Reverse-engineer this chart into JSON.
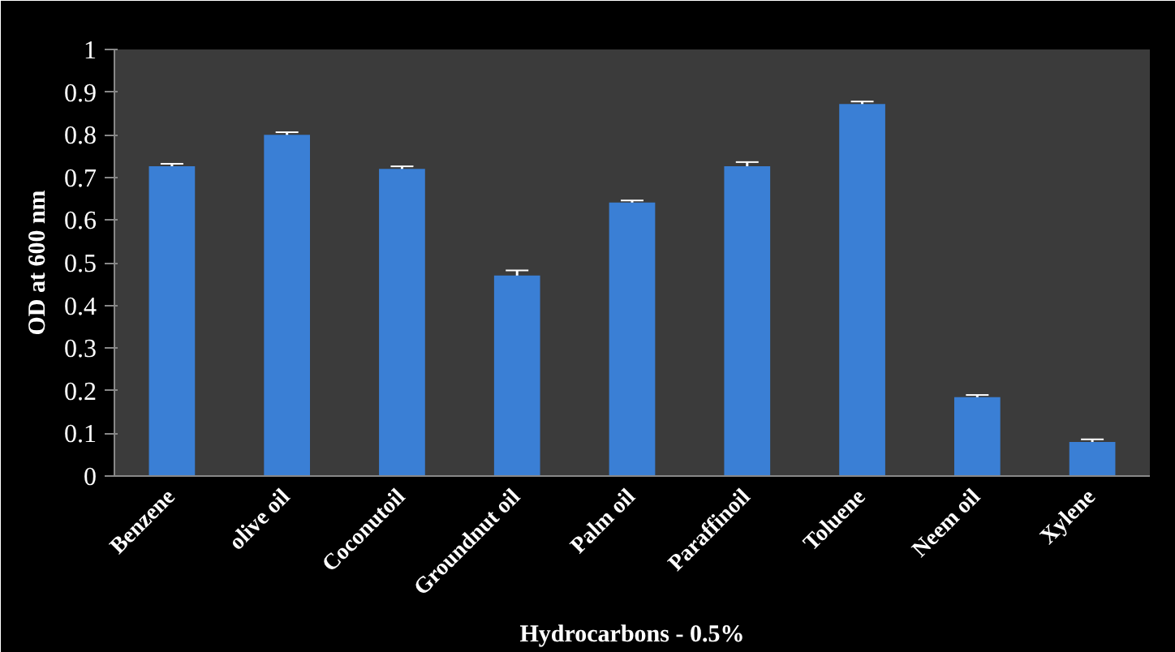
{
  "chart_data": {
    "type": "bar",
    "xlabel": "Hydrocarbons - 0.5%",
    "ylabel": "OD at 600 nm",
    "categories": [
      "Benzene",
      "olive oil",
      "Coconutoil",
      "Groundnut oil",
      "Palm oil",
      "Paraffinoil",
      "Toluene",
      "Neem oil",
      "Xylene"
    ],
    "values": [
      0.726,
      0.8,
      0.72,
      0.47,
      0.641,
      0.726,
      0.872,
      0.185,
      0.08
    ],
    "errors": [
      0.006,
      0.006,
      0.006,
      0.012,
      0.005,
      0.01,
      0.006,
      0.005,
      0.006
    ],
    "color": "#3a7fd5",
    "ylim": [
      0,
      1
    ],
    "yticks": [
      0,
      0.1,
      0.2,
      0.3,
      0.4,
      0.5,
      0.6,
      0.7,
      0.8,
      0.9,
      1
    ],
    "grid": false
  }
}
